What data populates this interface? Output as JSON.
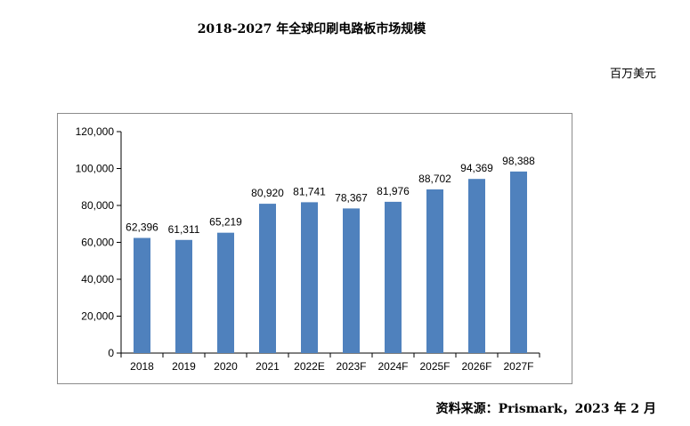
{
  "title": "2018-2027 年全球印刷电路板市场规模",
  "unit_label": "百万美元",
  "source_text": "资料来源：Prismark，2023 年 2 月",
  "colors": {
    "bar": "#4f81bd",
    "frame": "#8c8c8c",
    "axis": "#000000"
  },
  "chart_data": {
    "type": "bar",
    "title": "2018-2027 年全球印刷电路板市场规模",
    "xlabel": "",
    "ylabel": "百万美元",
    "ylim": [
      0,
      120000
    ],
    "yticks": [
      0,
      20000,
      40000,
      60000,
      80000,
      100000,
      120000
    ],
    "ytick_labels": [
      "0",
      "20,000",
      "40,000",
      "60,000",
      "80,000",
      "100,000",
      "120,000"
    ],
    "grid": false,
    "legend": "none",
    "categories": [
      "2018",
      "2019",
      "2020",
      "2021",
      "2022E",
      "2023F",
      "2024F",
      "2025F",
      "2026F",
      "2027F"
    ],
    "values": [
      62396,
      61311,
      65219,
      80920,
      81741,
      78367,
      81976,
      88702,
      94369,
      98388
    ],
    "data_labels": [
      "62,396",
      "61,311",
      "65,219",
      "80,920",
      "81,741",
      "78,367",
      "81,976",
      "88,702",
      "94,369",
      "98,388"
    ]
  }
}
